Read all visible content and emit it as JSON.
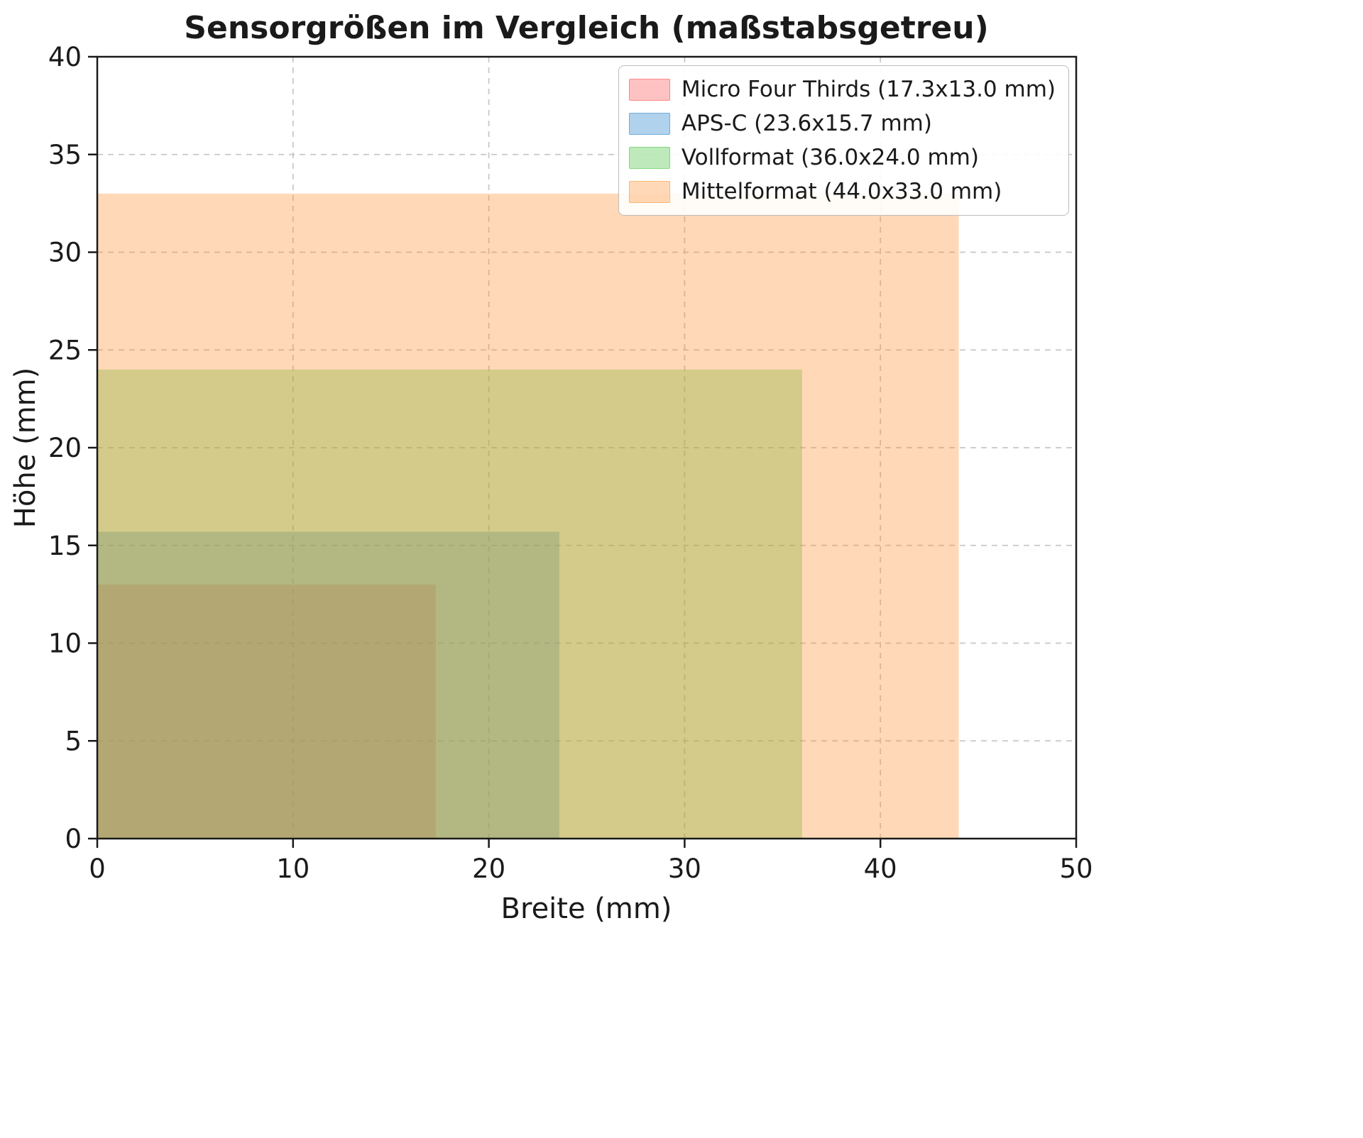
{
  "chart_data": {
    "type": "area",
    "title": "Sensorgrößen im Vergleich (maßstabsgetreu)",
    "xlabel": "Breite (mm)",
    "ylabel": "Höhe (mm)",
    "xlim": [
      0,
      50
    ],
    "ylim": [
      0,
      40
    ],
    "x_ticks": [
      0,
      10,
      20,
      30,
      40,
      50
    ],
    "y_ticks": [
      0,
      5,
      10,
      15,
      20,
      25,
      30,
      35,
      40
    ],
    "grid": true,
    "grid_style": "dashed",
    "legend_position": "upper right",
    "series": [
      {
        "name": "Micro Four Thirds",
        "label": "Micro Four Thirds (17.3x13.0 mm)",
        "width_mm": 17.3,
        "height_mm": 13.0,
        "color": "#fc4f4f",
        "alpha": 0.35
      },
      {
        "name": "APS-C",
        "label": "APS-C (23.6x15.7 mm)",
        "width_mm": 23.6,
        "height_mm": 15.7,
        "color": "#3d8fd1",
        "alpha": 0.4
      },
      {
        "name": "Vollformat",
        "label": "Vollformat (36.0x24.0 mm)",
        "width_mm": 36.0,
        "height_mm": 24.0,
        "color": "#46c33b",
        "alpha": 0.35
      },
      {
        "name": "Mittelformat",
        "label": "Mittelformat (44.0x33.0 mm)",
        "width_mm": 44.0,
        "height_mm": 33.0,
        "color": "#ff9331",
        "alpha": 0.35
      }
    ],
    "colors": {
      "spine": "#1a1a1a",
      "grid": "#c8c8c8",
      "text": "#1a1a1a",
      "legend_border": "#bdbdbd",
      "background": "#ffffff"
    }
  }
}
